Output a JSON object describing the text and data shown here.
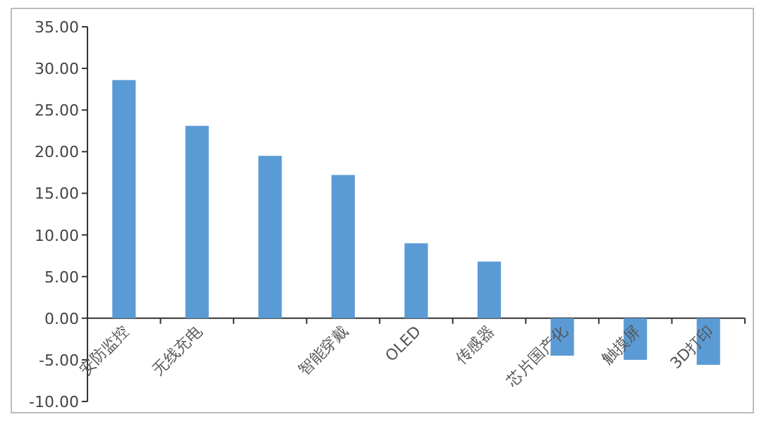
{
  "chart_data": {
    "type": "bar",
    "categories": [
      "安防监控",
      "无线充电",
      null,
      "智能穿戴",
      "OLED",
      "传感器",
      "芯片国产化",
      "触摸屏",
      "3D打印"
    ],
    "values": [
      28.6,
      23.1,
      19.5,
      17.2,
      9.0,
      6.8,
      -4.5,
      -5.0,
      -5.6
    ],
    "color": "#5b9bd5",
    "ylim": [
      -10,
      35
    ],
    "yticks": [
      {
        "value": -10,
        "label": "-10.00"
      },
      {
        "value": -5,
        "label": "-5.00"
      },
      {
        "value": 0,
        "label": "0.00"
      },
      {
        "value": 5,
        "label": "5.00"
      },
      {
        "value": 10,
        "label": "10.00"
      },
      {
        "value": 15,
        "label": "15.00"
      },
      {
        "value": 20,
        "label": "20.00"
      },
      {
        "value": 25,
        "label": "25.00"
      },
      {
        "value": 30,
        "label": "30.00"
      },
      {
        "value": 35,
        "label": "35.00"
      }
    ],
    "grid": false
  }
}
